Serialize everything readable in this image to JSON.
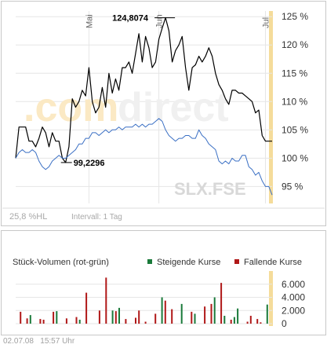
{
  "watermark": {
    "left": ".com",
    "right": "direct"
  },
  "instrument_label": "SLX.FSE",
  "info": {
    "hl_range": "25,8 %HL",
    "interval": "Intervall: 1 Tag"
  },
  "colors": {
    "price_line": "#000000",
    "benchmark_line": "#3a6fc4",
    "rising": "#1a7a3a",
    "falling": "#b01818",
    "highlight": "#f5dc9a",
    "grid": "#e6e6e6",
    "watermark": "#fbe9c4"
  },
  "chart_data": [
    {
      "type": "line",
      "x_month_labels": [
        "Mai",
        "Jun",
        "Jul"
      ],
      "ylim": [
        92,
        126
      ],
      "yticks": [
        {
          "value": 95,
          "label": "95 %"
        },
        {
          "value": 100,
          "label": "100 %"
        },
        {
          "value": 105,
          "label": "105 %"
        },
        {
          "value": 110,
          "label": "110 %"
        },
        {
          "value": 115,
          "label": "115 %"
        },
        {
          "value": 120,
          "label": "120 %"
        },
        {
          "value": 125,
          "label": "125 %"
        }
      ],
      "series": [
        {
          "values": [
            100,
            105.5,
            105.5,
            105.5,
            103,
            103,
            102,
            103.5,
            105.5,
            104.5,
            102,
            104.5,
            103,
            103,
            100,
            99.2296,
            102,
            110.5,
            109,
            110,
            112,
            111,
            116,
            110,
            108,
            109,
            112.5,
            109,
            115,
            111.5,
            114,
            112,
            116,
            116,
            117,
            115,
            118.5,
            122,
            117,
            121.5,
            119.5,
            116,
            117,
            121,
            123,
            124.8074,
            122.5,
            117,
            119,
            120,
            121.5,
            116,
            112,
            116,
            116.5,
            118,
            117,
            118,
            119.5,
            118,
            115,
            113,
            112,
            110.5,
            109.5,
            112,
            112,
            111.5,
            111.5,
            111,
            110.5,
            110,
            108,
            108.5,
            104,
            103,
            103,
            103
          ]
        },
        {
          "values": [
            100,
            101,
            101.5,
            101,
            101,
            101.5,
            101,
            99.5,
            98.5,
            98,
            98.5,
            99.5,
            100,
            100.5,
            100,
            100,
            100.5,
            101,
            101.5,
            102.5,
            102.5,
            103.5,
            103.5,
            104.5,
            104.5,
            104,
            104.5,
            105,
            104.5,
            105,
            105,
            105.5,
            105,
            105.5,
            105.5,
            105.5,
            106,
            105.5,
            106,
            105.5,
            106,
            106,
            106.5,
            107,
            106.5,
            105,
            104,
            103.5,
            103,
            103.5,
            103.5,
            104,
            104,
            103.5,
            103.5,
            105,
            104,
            103.5,
            102.5,
            102,
            101.5,
            99.5,
            99,
            99.5,
            99,
            100,
            99.5,
            99.5,
            100.5,
            100.5,
            98.5,
            98,
            97,
            97.5,
            96,
            95,
            95,
            93.5
          ]
        }
      ],
      "annotations": [
        {
          "label": "124,8074",
          "value": 124.8074,
          "index": 45
        },
        {
          "label": "99,2296",
          "value": 99.2296,
          "index": 15
        }
      ]
    },
    {
      "type": "bar",
      "title": "Stück-Volumen (rot-grün)",
      "legend": [
        "Steigende Kurse",
        "Fallende Kurse"
      ],
      "ylim": [
        0,
        8000
      ],
      "yticks": [
        {
          "value": 0,
          "label": "0"
        },
        {
          "value": 2000,
          "label": "2.000"
        },
        {
          "value": 4000,
          "label": "4.000"
        },
        {
          "value": 6000,
          "label": "6.000"
        }
      ],
      "values": [
        0,
        1800,
        0,
        800,
        1300,
        0,
        0,
        700,
        600,
        0,
        0,
        1800,
        1900,
        0,
        0,
        800,
        0,
        0,
        1000,
        600,
        0,
        4700,
        0,
        0,
        0,
        2000,
        0,
        7000,
        0,
        2000,
        1900,
        2400,
        0,
        700,
        0,
        0,
        900,
        2000,
        0,
        300,
        0,
        0,
        1500,
        0,
        4000,
        3500,
        0,
        2200,
        0,
        0,
        3000,
        0,
        0,
        1800,
        1500,
        0,
        0,
        2600,
        0,
        3000,
        4000,
        0,
        6200,
        1200,
        0,
        600,
        1000,
        2300,
        0,
        0,
        300,
        1200,
        0,
        700,
        200,
        0,
        2900,
        0
      ],
      "directions": [
        "f",
        "f",
        "g",
        "f",
        "g",
        "g",
        "g",
        "f",
        "f",
        "g",
        "g",
        "f",
        "g",
        "g",
        "g",
        "f",
        "g",
        "g",
        "f",
        "g",
        "g",
        "f",
        "g",
        "g",
        "g",
        "f",
        "g",
        "f",
        "g",
        "g",
        "f",
        "g",
        "g",
        "f",
        "g",
        "g",
        "f",
        "f",
        "g",
        "f",
        "g",
        "g",
        "f",
        "g",
        "g",
        "f",
        "g",
        "f",
        "g",
        "g",
        "g",
        "f",
        "g",
        "f",
        "g",
        "g",
        "g",
        "f",
        "g",
        "f",
        "g",
        "g",
        "f",
        "g",
        "f",
        "f",
        "g",
        "g",
        "g",
        "g",
        "f",
        "f",
        "g",
        "f",
        "f",
        "g",
        "g",
        "f"
      ]
    }
  ],
  "footer": {
    "date": "02.07.08",
    "time": "15:57 Uhr"
  }
}
